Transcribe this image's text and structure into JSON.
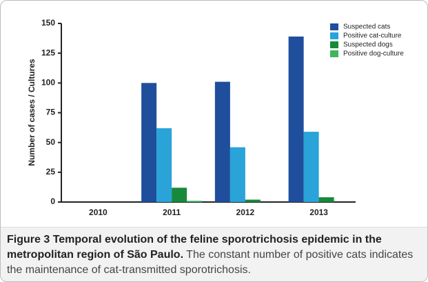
{
  "chart_data": {
    "type": "bar",
    "y_label": "Number of cases / Cultures",
    "categories": [
      "2010",
      "2011",
      "2012",
      "2013"
    ],
    "series": [
      {
        "name": "Suspected cats",
        "color": "#1f4e9c",
        "values": [
          0,
          100,
          101,
          139
        ]
      },
      {
        "name": "Positive cat-culture",
        "color": "#2aa3d8",
        "values": [
          0,
          62,
          46,
          59
        ]
      },
      {
        "name": "Suspected dogs",
        "color": "#168a3a",
        "values": [
          0,
          12,
          2,
          4
        ]
      },
      {
        "name": "Positive dog-culture",
        "color": "#3fb65a",
        "values": [
          0,
          1,
          0,
          0
        ]
      }
    ],
    "ylim": [
      0,
      150
    ],
    "yticks": [
      0,
      25,
      50,
      75,
      100,
      125,
      150
    ],
    "legend": "top-right"
  },
  "caption": {
    "label": "Figure 3",
    "title": "Temporal evolution of the feline sporotrichosis epidemic in the metropolitan region of São Paulo.",
    "text": "The constant number of positive cats indicates the maintenance of cat-transmitted sporotrichosis."
  }
}
